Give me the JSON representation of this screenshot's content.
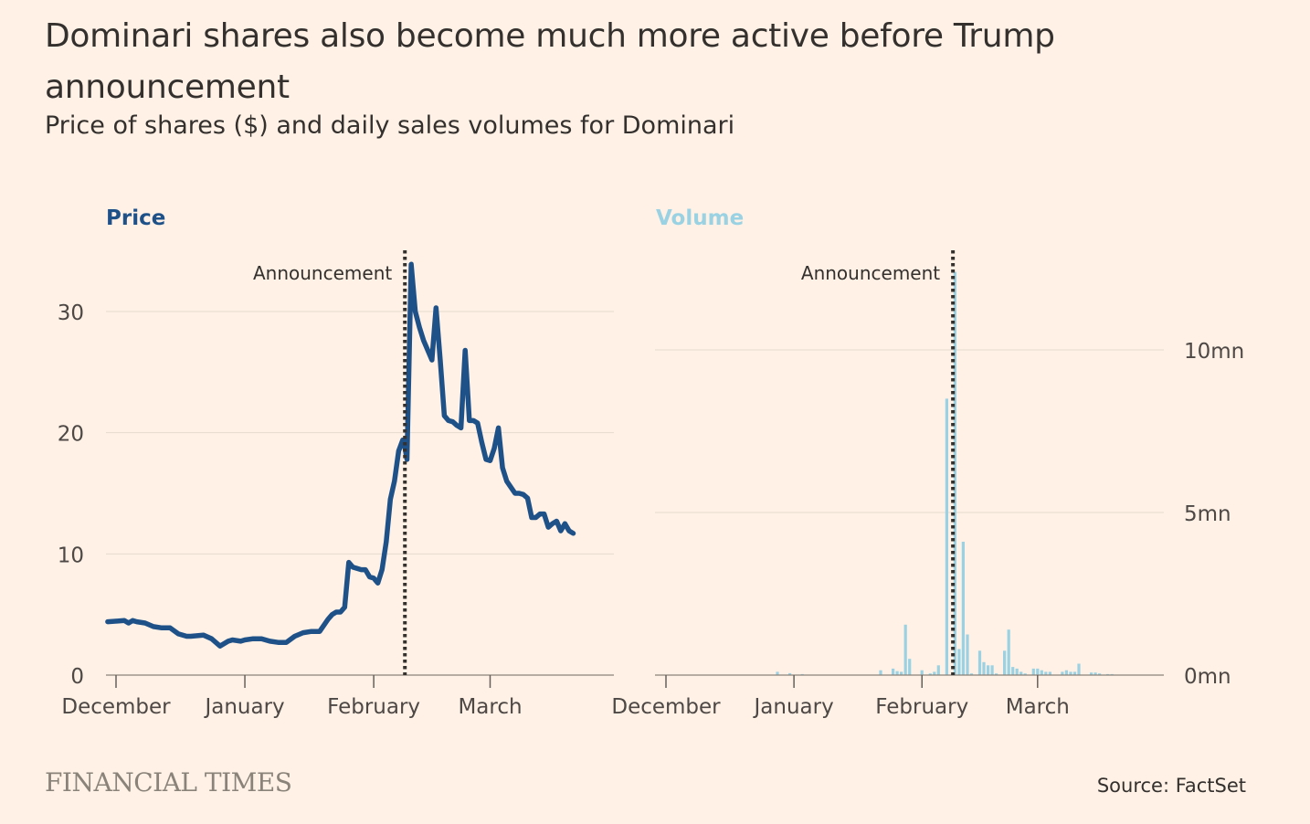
{
  "title": "Dominari shares also become much more active before Trump announcement",
  "subtitle": "Price of shares ($) and daily sales volumes for Dominari",
  "source": "Source: FactSet",
  "logo": "FINANCIAL TIMES",
  "colors": {
    "price": "#1f5189",
    "volume": "#9ad2e3",
    "background": "#fff1e5",
    "annotation": "#33302e"
  },
  "chart_data": [
    {
      "type": "line",
      "panel_title": "Price",
      "x_tick_labels": [
        "December",
        "January",
        "February",
        "March"
      ],
      "x_tick_dates": [
        0,
        31,
        62,
        90
      ],
      "y_ticks": [
        0,
        10,
        20,
        30
      ],
      "y_tick_labels": [
        "0",
        "10",
        "20",
        "30"
      ],
      "ylim": [
        0,
        35
      ],
      "annotation": {
        "label": "Announcement",
        "date": 69.5
      },
      "series": [
        {
          "x": [
            -2,
            2,
            3,
            4,
            5,
            7,
            9,
            11,
            13,
            15,
            17,
            18,
            21,
            23,
            25,
            27,
            28,
            30,
            31,
            33,
            35,
            37,
            39,
            41,
            43,
            45,
            47,
            49,
            51,
            52,
            53,
            54,
            55,
            56,
            57,
            58,
            59,
            60,
            61,
            62,
            63,
            64,
            65,
            66,
            67,
            68,
            69,
            69.5,
            70,
            71,
            72,
            73,
            74,
            75,
            76,
            77,
            78,
            79,
            80,
            81,
            82,
            83,
            84,
            85,
            86,
            87,
            88,
            89,
            90,
            91,
            92,
            93,
            94,
            95,
            96,
            97,
            98,
            99,
            100,
            101,
            102,
            103,
            104,
            105,
            106,
            107,
            108,
            109,
            110
          ],
          "y": [
            4.4,
            4.5,
            4.3,
            4.5,
            4.4,
            4.3,
            4.0,
            3.9,
            3.9,
            3.4,
            3.2,
            3.2,
            3.3,
            3.0,
            2.4,
            2.8,
            2.9,
            2.8,
            2.9,
            3.0,
            3.0,
            2.8,
            2.7,
            2.7,
            3.2,
            3.5,
            3.6,
            3.6,
            4.6,
            5.0,
            5.2,
            5.2,
            5.6,
            9.3,
            8.9,
            8.8,
            8.7,
            8.7,
            8.1,
            8.0,
            7.6,
            8.7,
            11.0,
            14.5,
            16.0,
            18.5,
            19.4,
            18.8,
            17.8,
            33.9,
            30.0,
            28.7,
            27.6,
            26.8,
            26.0,
            30.3,
            26.0,
            21.4,
            21.0,
            20.9,
            20.6,
            20.4,
            26.8,
            21.0,
            21.0,
            20.8,
            19.2,
            17.8,
            17.7,
            18.7,
            20.4,
            17.1,
            16.0,
            15.5,
            15.0,
            15.0,
            14.9,
            14.6,
            13.0,
            13.0,
            13.3,
            13.3,
            12.2,
            12.5,
            12.7,
            11.9,
            12.5,
            11.9,
            11.7
          ]
        }
      ]
    },
    {
      "type": "bar",
      "panel_title": "Volume",
      "x_tick_labels": [
        "December",
        "January",
        "February",
        "March"
      ],
      "x_tick_dates": [
        0,
        31,
        62,
        90
      ],
      "y_ticks": [
        0,
        5,
        10
      ],
      "y_tick_labels": [
        "0mn",
        "5mn",
        "10mn"
      ],
      "ylim": [
        0,
        12.5
      ],
      "annotation": {
        "label": "Announcement",
        "date": 69.5
      },
      "series": [
        {
          "x": [
            27,
            30,
            33,
            52,
            55,
            56,
            57,
            58,
            59,
            62,
            64,
            65,
            66,
            68,
            70,
            71,
            72,
            73,
            74,
            76,
            77,
            78,
            79,
            80,
            82,
            83,
            84,
            85,
            86,
            87,
            89,
            90,
            91,
            92,
            93,
            96,
            97,
            98,
            99,
            100,
            103,
            104,
            105,
            107,
            108
          ],
          "y": [
            0.1,
            0.06,
            0.03,
            0.15,
            0.2,
            0.12,
            0.1,
            1.55,
            0.5,
            0.15,
            0.05,
            0.1,
            0.3,
            8.5,
            12.4,
            0.8,
            4.1,
            1.25,
            0.05,
            0.75,
            0.4,
            0.3,
            0.3,
            0.05,
            0.75,
            1.4,
            0.25,
            0.2,
            0.1,
            0.05,
            0.2,
            0.2,
            0.15,
            0.1,
            0.1,
            0.1,
            0.15,
            0.1,
            0.1,
            0.35,
            0.08,
            0.08,
            0.05,
            0.03,
            0.03
          ]
        }
      ]
    }
  ]
}
